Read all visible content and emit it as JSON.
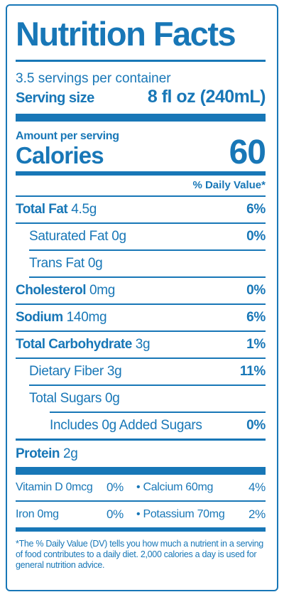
{
  "title": "Nutrition Facts",
  "servings_per_container": "3.5 servings per container",
  "serving_size": {
    "label": "Serving size",
    "value": "8 fl oz (240mL)"
  },
  "amount_per_serving": "Amount per serving",
  "calories": {
    "label": "Calories",
    "value": "60"
  },
  "dv_header": "% Daily Value*",
  "nutrients": [
    {
      "name": "Total Fat",
      "amount": "4.5g",
      "dv": "6%"
    },
    {
      "name": "Saturated Fat",
      "amount": "0g",
      "dv": "0%"
    },
    {
      "name": "Trans Fat",
      "amount": "0g",
      "dv": ""
    },
    {
      "name": "Cholesterol",
      "amount": "0mg",
      "dv": "0%"
    },
    {
      "name": "Sodium",
      "amount": "140mg",
      "dv": "6%"
    },
    {
      "name": "Total Carbohydrate",
      "amount": "3g",
      "dv": "1%"
    },
    {
      "name": "Dietary Fiber",
      "amount": "3g",
      "dv": "11%"
    },
    {
      "name": "Total Sugars",
      "amount": "0g",
      "dv": ""
    },
    {
      "name": "Includes 0g Added Sugars",
      "amount": "",
      "dv": "0%"
    },
    {
      "name": "Protein",
      "amount": "2g",
      "dv": ""
    }
  ],
  "vitamins": [
    {
      "left_name": "Vitamin D 0mcg",
      "left_dv": "0%",
      "right_name": "• Calcium 60mg",
      "right_dv": "4%"
    },
    {
      "left_name": "Iron 0mg",
      "left_dv": "0%",
      "right_name": "• Potassium 70mg",
      "right_dv": "2%"
    }
  ],
  "footnote": "*The % Daily Value (DV) tells you how much a nutrient in a serving of food contributes to a daily diet. 2,000 calories a day is used for general nutrition advice.",
  "colors": {
    "label_blue": "#1877b7",
    "background": "#ffffff"
  }
}
